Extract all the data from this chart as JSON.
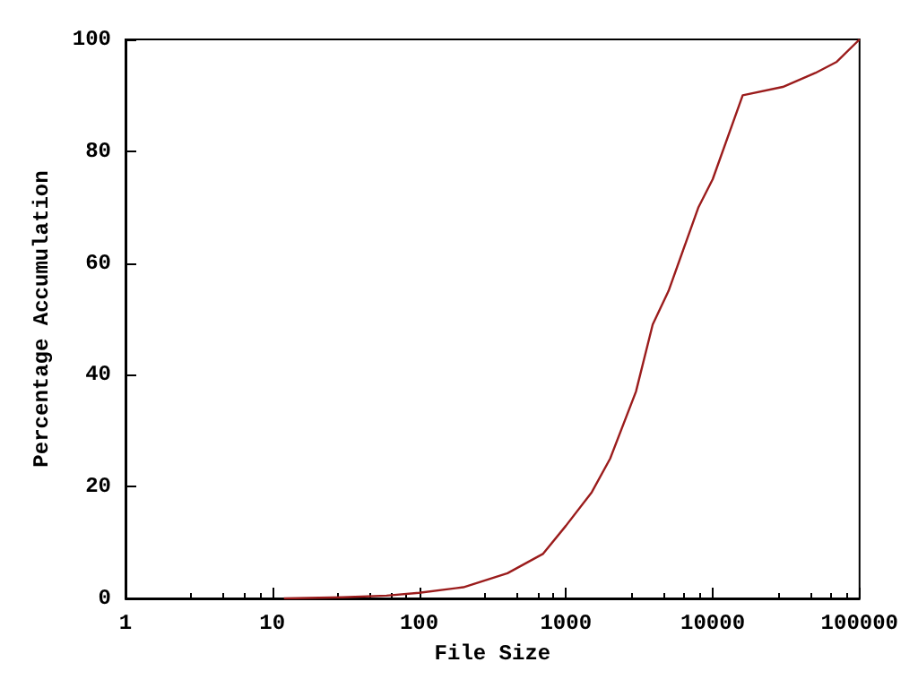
{
  "chart_data": {
    "type": "line",
    "xlabel": "File Size",
    "ylabel": "Percentage Accumulation",
    "log": "x",
    "xlim": [
      1,
      100000
    ],
    "xticks": [
      1,
      10,
      100,
      1000,
      10000,
      100000
    ],
    "ylim": [
      0,
      100
    ],
    "yticks": [
      0,
      20,
      40,
      60,
      80,
      100
    ],
    "grid": false,
    "marker": "none",
    "line_style": "solid",
    "series": [
      {
        "color": "#9b1c1c",
        "x": [
          12,
          30,
          60,
          100,
          200,
          400,
          700,
          1000,
          1500,
          2000,
          3000,
          3900,
          5000,
          8000,
          10000,
          16000,
          30000,
          50000,
          70000,
          100000
        ],
        "values": [
          0,
          0.2,
          0.5,
          1,
          2,
          4.5,
          8,
          13,
          19,
          25,
          37,
          49,
          55,
          70,
          75,
          90,
          91.5,
          94,
          96,
          100
        ]
      }
    ]
  }
}
